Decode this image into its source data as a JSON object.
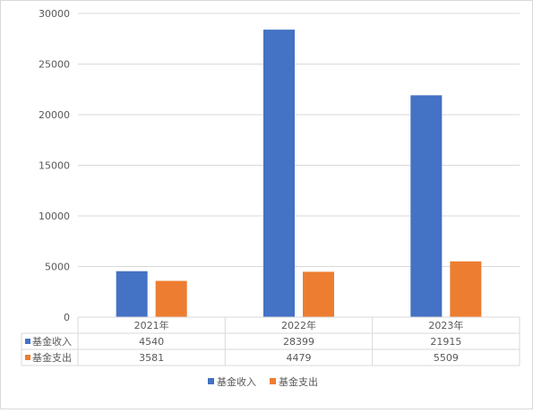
{
  "chart_data": {
    "type": "bar",
    "categories": [
      "2021年",
      "2022年",
      "2023年"
    ],
    "series": [
      {
        "name": "基金收入",
        "values": [
          4540,
          28399,
          21915
        ],
        "color": "#4472C4"
      },
      {
        "name": "基金支出",
        "values": [
          3581,
          4479,
          5509
        ],
        "color": "#ED7D31"
      }
    ],
    "ylim": [
      0,
      30000
    ],
    "yticks": [
      0,
      5000,
      10000,
      15000,
      20000,
      25000,
      30000
    ],
    "grid": true,
    "legend": "bottom",
    "data_table": true
  }
}
